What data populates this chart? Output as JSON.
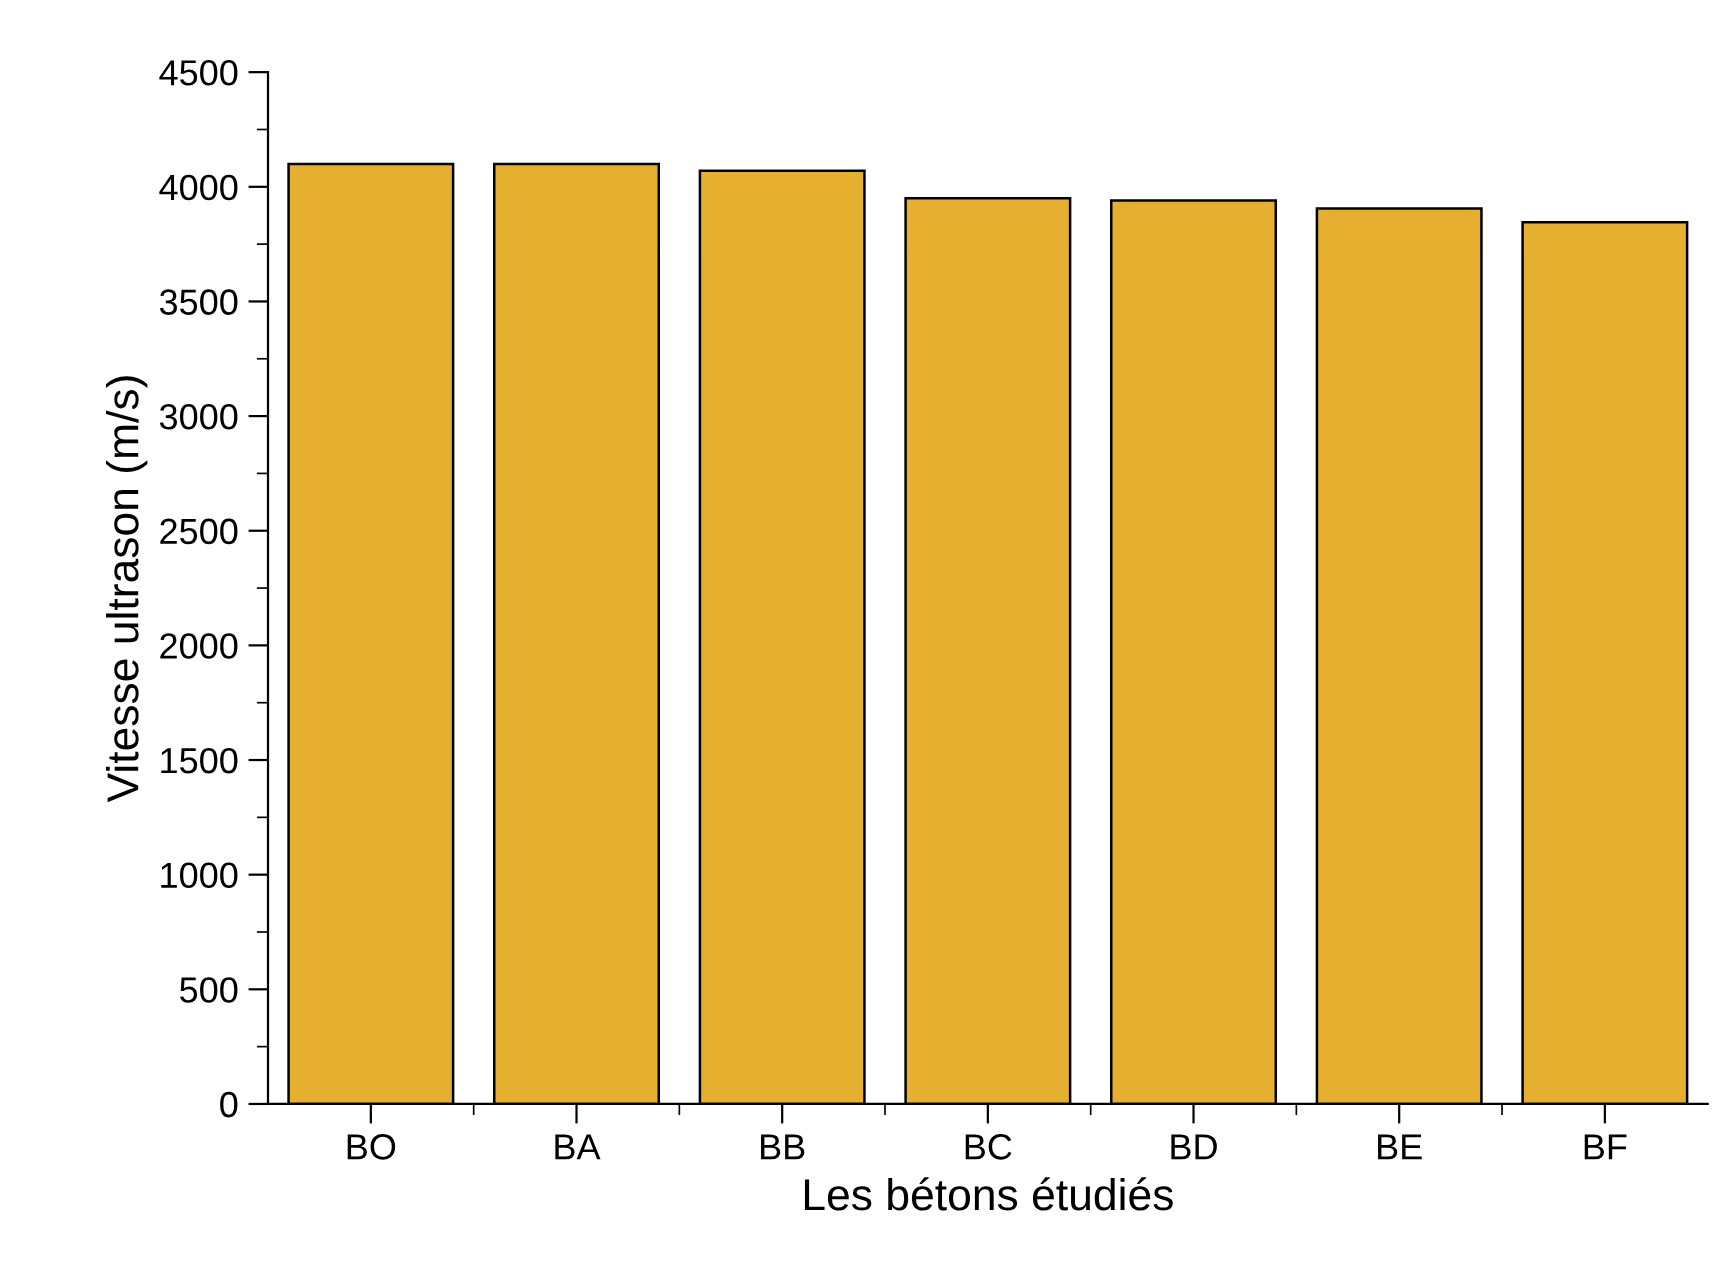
{
  "chart_data": {
    "type": "bar",
    "xlabel": "Les bétons étudiés",
    "ylabel": "Vitesse ultrason (m/s)",
    "categories": [
      "BO",
      "BA",
      "BB",
      "BC",
      "BD",
      "BE",
      "BF"
    ],
    "values": [
      4100,
      4100,
      4070,
      3950,
      3940,
      3905,
      3845
    ],
    "color": "#e5b02f",
    "ylim": [
      0,
      4500
    ],
    "yticks": [
      0,
      500,
      1000,
      1500,
      2000,
      2500,
      3000,
      3500,
      4000,
      4500
    ],
    "grid": false
  }
}
